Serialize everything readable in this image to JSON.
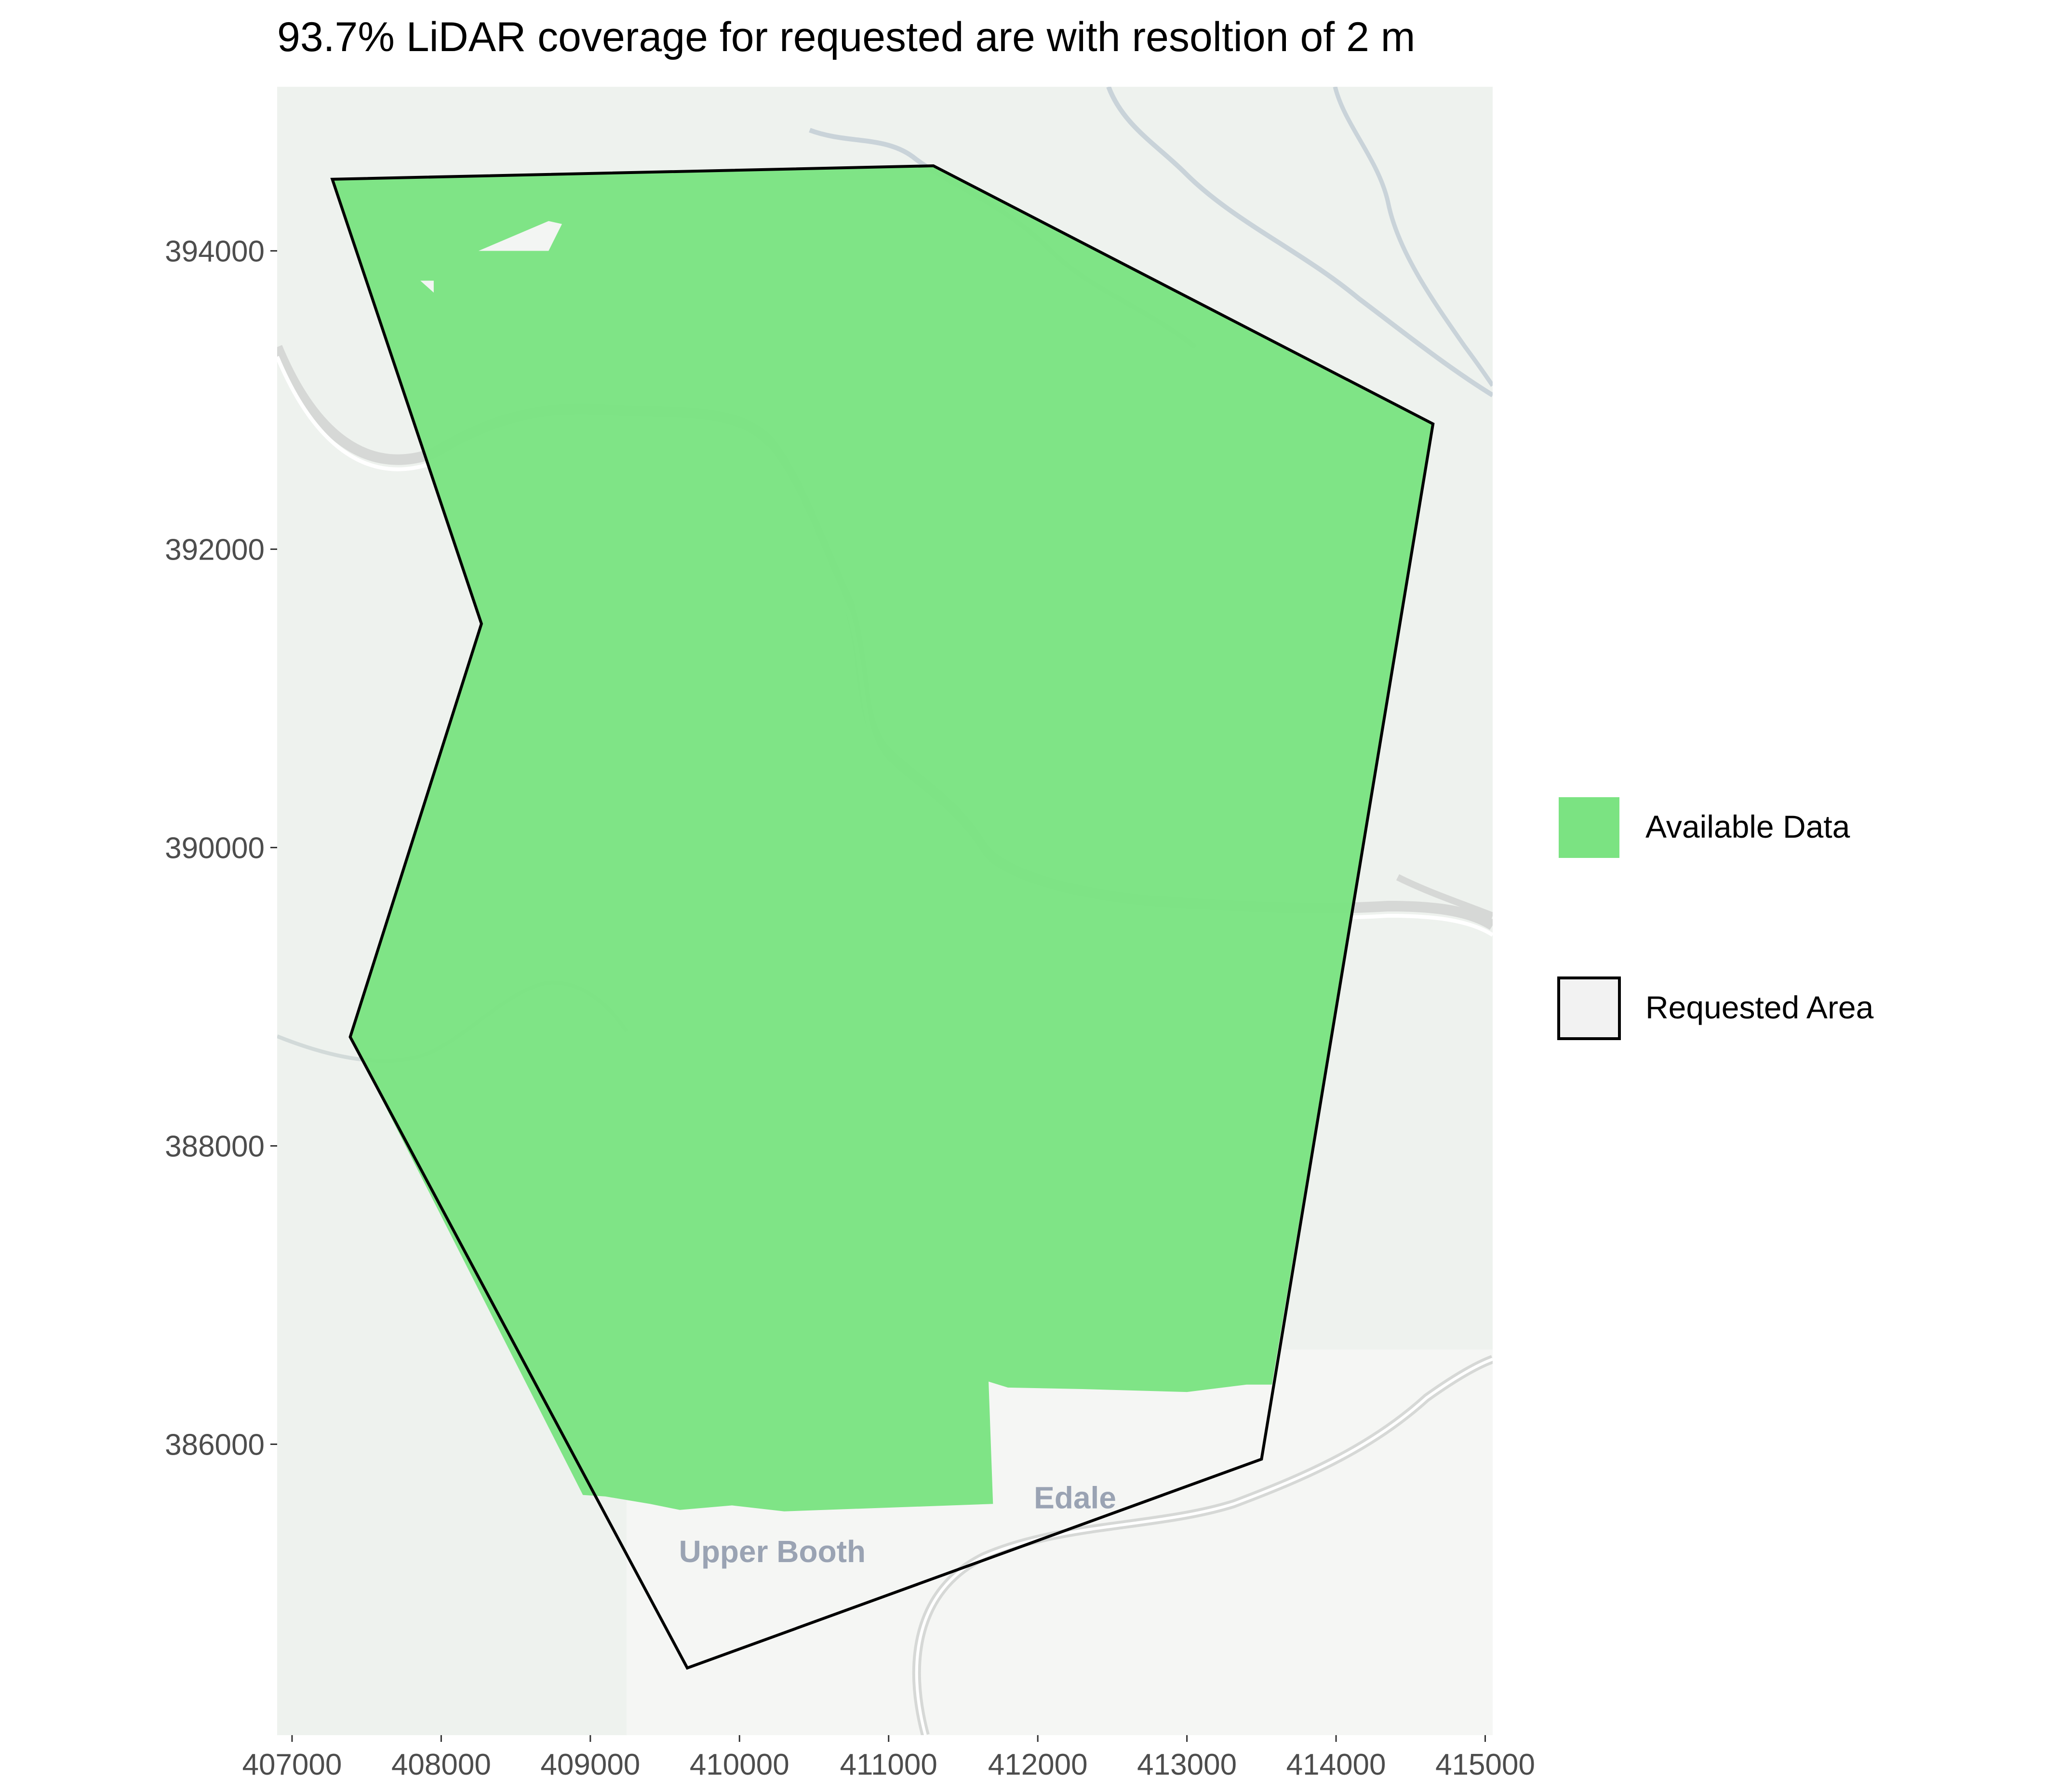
{
  "chart_data": {
    "type": "map",
    "title": "93.7% LiDAR coverage for requested are with resoltion of 2 m",
    "xlim": [
      406900,
      415050
    ],
    "ylim": [
      384050,
      395100
    ],
    "x_ticks": [
      407000,
      408000,
      409000,
      410000,
      411000,
      412000,
      413000,
      414000,
      415000
    ],
    "y_ticks": [
      386000,
      388000,
      390000,
      392000,
      394000
    ],
    "x_tick_labels": [
      "407000",
      "408000",
      "409000",
      "410000",
      "411000",
      "412000",
      "413000",
      "414000",
      "415000"
    ],
    "y_tick_labels": [
      "386000",
      "388000",
      "390000",
      "392000",
      "394000"
    ],
    "requested_area": [
      [
        407270,
        394480
      ],
      [
        411300,
        394570
      ],
      [
        414650,
        392840
      ],
      [
        413500,
        385900
      ],
      [
        409650,
        384500
      ],
      [
        407390,
        388730
      ],
      [
        408270,
        391500
      ],
      [
        407270,
        394480
      ]
    ],
    "available_data": [
      [
        407270,
        394480
      ],
      [
        411300,
        394570
      ],
      [
        414650,
        392840
      ],
      [
        413570,
        386400
      ],
      [
        413400,
        386400
      ],
      [
        413000,
        386350
      ],
      [
        412300,
        386370
      ],
      [
        411800,
        386380
      ],
      [
        411670,
        386420
      ],
      [
        411700,
        385600
      ],
      [
        410300,
        385550
      ],
      [
        409950,
        385590
      ],
      [
        409600,
        385560
      ],
      [
        409400,
        385600
      ],
      [
        409100,
        385650
      ],
      [
        408950,
        385660
      ],
      [
        407390,
        388730
      ],
      [
        408270,
        391500
      ],
      [
        407270,
        394480
      ]
    ],
    "coverage_holes": [
      [
        [
          408000,
          394000
        ],
        [
          408720,
          394000
        ],
        [
          408810,
          394180
        ],
        [
          408720,
          394200
        ],
        [
          408250,
          394000
        ]
      ],
      [
        [
          407860,
          393800
        ],
        [
          407950,
          393720
        ],
        [
          407950,
          393800
        ]
      ]
    ],
    "place_labels": [
      {
        "text": "Upper Booth",
        "x": 410220,
        "y": 385210
      },
      {
        "text": "Edale",
        "x": 412250,
        "y": 385570
      }
    ],
    "legend": {
      "position": "right",
      "items": [
        {
          "label": "Available Data",
          "color": "#7be382",
          "stroke": "none"
        },
        {
          "label": "Requested Area",
          "color": "#f2f2f2",
          "stroke": "#000000"
        }
      ]
    },
    "colors": {
      "available_fill": "#7be382",
      "requested_outline": "#000000",
      "basemap": "#eef2ee",
      "river": "#c9d3d9",
      "tick_label": "#4d4d4d"
    }
  }
}
